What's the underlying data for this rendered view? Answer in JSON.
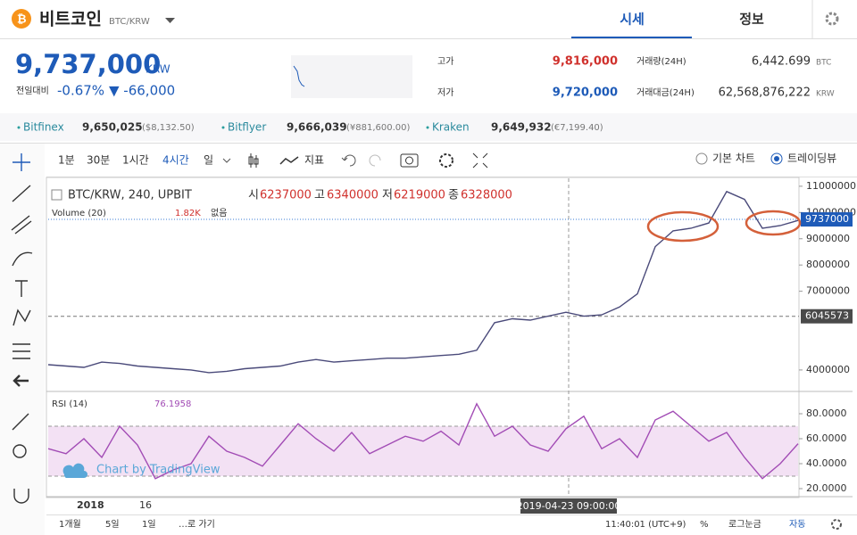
{
  "header": {
    "coin_name": "비트코인",
    "pair": "BTC/KRW",
    "tabs": [
      "시세",
      "정보"
    ]
  },
  "price": {
    "current": "9,737,000",
    "currency": "KRW",
    "change_label": "전일대비",
    "change_pct": "-0.67%",
    "change_abs": "▼ -66,000"
  },
  "stats": [
    {
      "label": "고가",
      "value": "9,816,000"
    },
    {
      "label": "저가",
      "value": "9,720,000"
    },
    {
      "label": "거래량(24H)",
      "value": "6,442.699",
      "unit": "BTC"
    },
    {
      "label": "거래대금(24H)",
      "value": "62,568,876,222",
      "unit": "KRW"
    }
  ],
  "exchanges": [
    {
      "name": "Bitfinex",
      "price": "9,650,025",
      "fx": "($8,132.50)"
    },
    {
      "name": "Bitflyer",
      "price": "9,666,039",
      "fx": "(¥881,600.00)"
    },
    {
      "name": "Kraken",
      "price": "9,649,932",
      "fx": "(€7,199.40)"
    }
  ],
  "toolbar": {
    "intervals": [
      "1분",
      "30분",
      "1시간",
      "4시간",
      "일"
    ],
    "indicators": "지표",
    "modes": [
      "기본 차트",
      "트레이딩뷰"
    ]
  },
  "legend": {
    "symbol": "BTC/KRW, 240, UPBIT",
    "o_label": "시",
    "o": "6237000",
    "h_label": "고",
    "h": "6340000",
    "l_label": "저",
    "l": "6219000",
    "c_label": "종",
    "c": "6328000",
    "volume_label": "Volume (20)",
    "volume": "1.82K",
    "volume_note": "없음"
  },
  "rsi_legend": {
    "label": "RSI (14)",
    "value": "76.1958"
  },
  "watermark": "Chart by TradingView",
  "x_labels": [
    "2018",
    "16"
  ],
  "crosshair_time": "2019-04-23 09:00:00",
  "bottom": {
    "ranges": [
      "1개월",
      "5일",
      "1일",
      "…로 가기"
    ],
    "time": "11:40:01 (UTC+9)",
    "pct": "%",
    "log": "로그눈금",
    "auto": "자동"
  },
  "chart_data": [
    {
      "type": "line",
      "color": "#4a4a7a",
      "ylim": [
        3250000,
        11200000
      ],
      "yticks": [
        4000000,
        7000000,
        8000000,
        9000000,
        10000000,
        11000000
      ],
      "grid": false,
      "current_price": 9737000,
      "crosshair_price": 6045573,
      "values": [
        4200000,
        4150000,
        4100000,
        4300000,
        4250000,
        4150000,
        4100000,
        4050000,
        4000000,
        3900000,
        3950000,
        4050000,
        4100000,
        4150000,
        4300000,
        4400000,
        4300000,
        4350000,
        4400000,
        4450000,
        4450000,
        4500000,
        4550000,
        4600000,
        4750000,
        5800000,
        5950000,
        5900000,
        6050000,
        6200000,
        6050000,
        6100000,
        6400000,
        6900000,
        8700000,
        9300000,
        9400000,
        9600000,
        10800000,
        10500000,
        9400000,
        9500000,
        9700000
      ]
    },
    {
      "type": "line",
      "color": "#a24cb5",
      "ylim": [
        15,
        95
      ],
      "band": [
        30,
        70
      ],
      "grid": false,
      "yticks": [
        {
          "value": 20,
          "label": "20.0000"
        },
        {
          "value": 40,
          "label": "40.0000"
        },
        {
          "value": 60,
          "label": "60.0000"
        },
        {
          "value": 80,
          "label": "80.0000"
        }
      ],
      "values": [
        52,
        48,
        60,
        45,
        70,
        55,
        28,
        35,
        40,
        62,
        50,
        45,
        38,
        55,
        72,
        60,
        50,
        65,
        48,
        55,
        62,
        58,
        66,
        55,
        88,
        62,
        70,
        55,
        50,
        68,
        78,
        52,
        60,
        45,
        75,
        82,
        70,
        58,
        65,
        45,
        28,
        40,
        56
      ]
    }
  ]
}
